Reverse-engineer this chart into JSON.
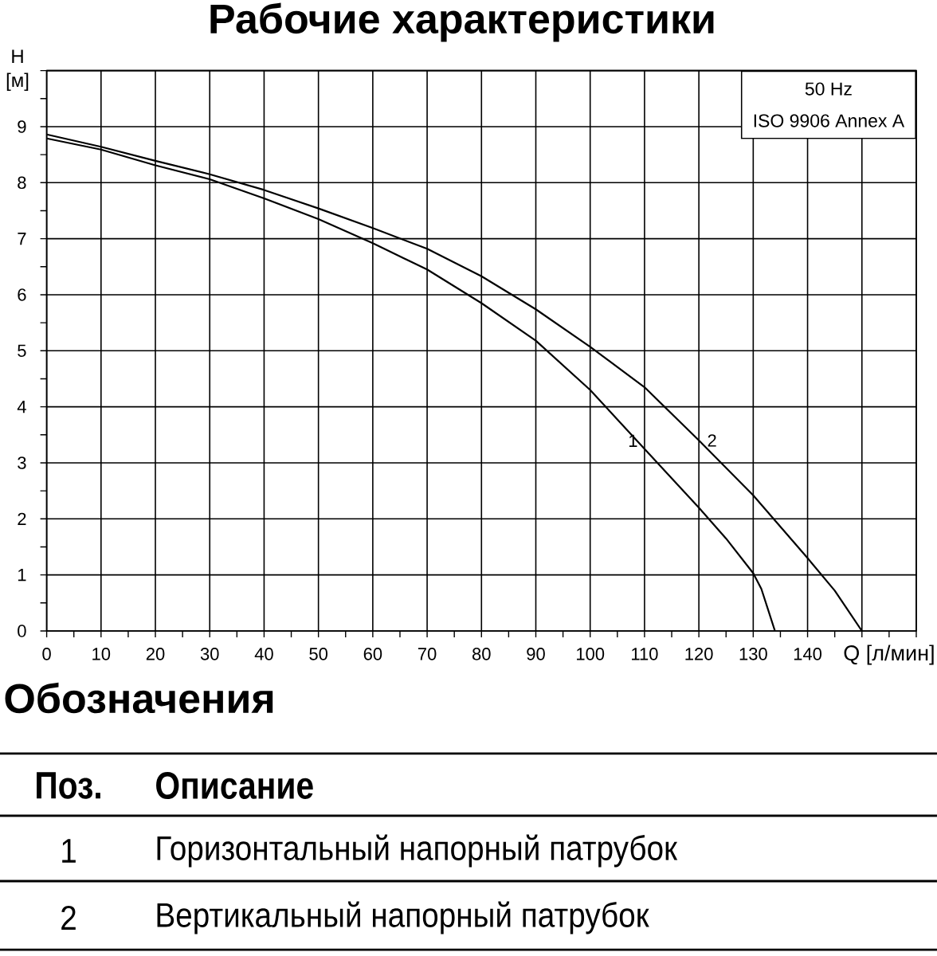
{
  "chart_data": {
    "type": "line",
    "title": "Рабочие характеристики",
    "xlabel": "Q [л/мин]",
    "ylabel": "H [м]",
    "xlim": [
      0,
      160
    ],
    "xticks": [
      0,
      10,
      20,
      30,
      40,
      50,
      60,
      70,
      80,
      90,
      100,
      110,
      120,
      130,
      140,
      {
        "value": 150,
        "label": null
      },
      {
        "value": 160,
        "label": null
      }
    ],
    "ylim": [
      0,
      10
    ],
    "yticks": [
      0,
      1,
      2,
      3,
      4,
      5,
      6,
      7,
      8,
      9,
      {
        "value": 10,
        "label": null
      }
    ],
    "grid": true,
    "series": [
      {
        "name": "1",
        "color": "#000000",
        "x": [
          0,
          10,
          20,
          30,
          40,
          50,
          60,
          70,
          80,
          90,
          100,
          110,
          120,
          125,
          130,
          131.5,
          134
        ],
        "values": [
          8.79,
          8.59,
          8.31,
          8.06,
          7.72,
          7.35,
          6.92,
          6.45,
          5.85,
          5.18,
          4.3,
          3.25,
          2.2,
          1.65,
          1.03,
          0.75,
          0
        ]
      },
      {
        "name": "2",
        "color": "#000000",
        "x": [
          0,
          10,
          20,
          30,
          40,
          50,
          60,
          70,
          80,
          90,
          100,
          110,
          120,
          130,
          140,
          145,
          150
        ],
        "values": [
          8.86,
          8.64,
          8.39,
          8.15,
          7.87,
          7.54,
          7.19,
          6.82,
          6.33,
          5.74,
          5.07,
          4.35,
          3.4,
          2.42,
          1.3,
          0.72,
          0
        ]
      }
    ],
    "annotations": [
      "50 Hz",
      "ISO 9906 Annex A",
      "Обозначения",
      "Поз.",
      "Описание",
      "Горизонтальный напорный патрубок",
      "Вертикальный напорный патрубок"
    ]
  }
}
